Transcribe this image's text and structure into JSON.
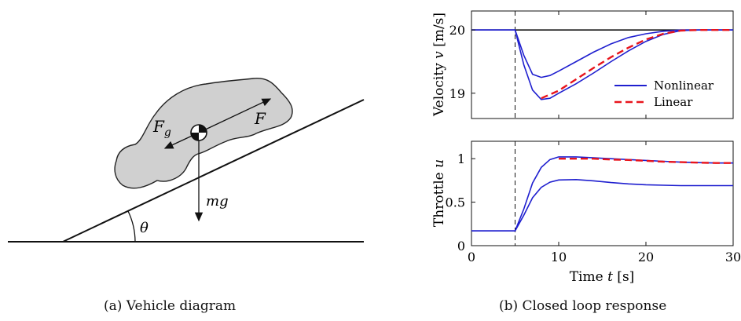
{
  "captions": {
    "left": "(a) Vehicle diagram",
    "right": "(b) Closed loop response"
  },
  "diagram": {
    "label_force_gravity": "F",
    "label_force_gravity_sub": "g",
    "label_force": "F",
    "label_weight": "mg",
    "label_angle": "θ",
    "colors": {
      "car_fill": "#d0d0d0",
      "car_stroke": "#222222",
      "line": "#111111"
    }
  },
  "chart_data": [
    {
      "type": "line",
      "ylabel": "Velocity v [m/s]",
      "ylabel_text": "Velocity ",
      "ylabel_var": "v",
      "ylabel_unit": " [m/s]",
      "xlim": [
        0,
        30
      ],
      "ylim": [
        18.6,
        20.3
      ],
      "yticks": [
        19,
        20
      ],
      "reference_value": 20,
      "reference_time": 5,
      "series": [
        {
          "name": "Nonlinear",
          "color": "#1f1fcf",
          "style": "solid",
          "x": [
            0,
            5,
            6,
            7,
            8,
            9,
            10,
            12,
            14,
            16,
            18,
            20,
            22,
            24,
            26,
            28,
            30
          ],
          "y": [
            20,
            20,
            19.6,
            19.3,
            19.25,
            19.28,
            19.35,
            19.5,
            19.65,
            19.78,
            19.88,
            19.94,
            19.98,
            20,
            20,
            20,
            20
          ]
        },
        {
          "name": "Nonlinear",
          "color": "#1f1fcf",
          "style": "solid",
          "x": [
            0,
            5,
            6,
            7,
            8,
            9,
            10,
            12,
            14,
            16,
            18,
            20,
            22,
            24,
            26,
            28,
            30
          ],
          "y": [
            20,
            20,
            19.45,
            19.05,
            18.9,
            18.92,
            19.0,
            19.15,
            19.32,
            19.5,
            19.67,
            19.82,
            19.93,
            19.99,
            20,
            20,
            20
          ]
        },
        {
          "name": "Linear",
          "color": "#e8141c",
          "style": "dashed",
          "x": [
            8,
            10,
            12,
            14,
            16,
            18,
            20,
            22,
            24,
            26,
            28,
            30
          ],
          "y": [
            18.92,
            19.04,
            19.22,
            19.4,
            19.57,
            19.72,
            19.85,
            19.94,
            19.99,
            20,
            20,
            20
          ]
        }
      ],
      "legend": [
        {
          "label": "Nonlinear",
          "color": "#1f1fcf",
          "style": "solid"
        },
        {
          "label": "Linear",
          "color": "#e8141c",
          "style": "dashed"
        }
      ],
      "legend_position": "lower-right"
    },
    {
      "type": "line",
      "ylabel": "Throttle u",
      "ylabel_text": "Throttle ",
      "ylabel_var": "u",
      "xlabel": "Time t [s]",
      "xlabel_text": "Time ",
      "xlabel_var": "t",
      "xlabel_unit": " [s]",
      "xlim": [
        0,
        30
      ],
      "ylim": [
        0,
        1.2
      ],
      "yticks": [
        0,
        0.5,
        1
      ],
      "ytick_labels": [
        "0",
        "0.5",
        "1"
      ],
      "xticks": [
        0,
        10,
        20,
        30
      ],
      "xtick_labels": [
        "0",
        "10",
        "20",
        "30"
      ],
      "reference_time": 5,
      "series": [
        {
          "name": "Nonlinear",
          "color": "#1f1fcf",
          "style": "solid",
          "x": [
            0,
            5,
            6,
            7,
            8,
            9,
            10,
            12,
            14,
            16,
            18,
            20,
            22,
            24,
            26,
            28,
            30
          ],
          "y": [
            0.17,
            0.17,
            0.42,
            0.72,
            0.9,
            0.99,
            1.02,
            1.02,
            1.01,
            1.0,
            0.99,
            0.98,
            0.97,
            0.96,
            0.955,
            0.95,
            0.95
          ]
        },
        {
          "name": "Nonlinear",
          "color": "#1f1fcf",
          "style": "solid",
          "x": [
            0,
            5,
            6,
            7,
            8,
            9,
            10,
            12,
            14,
            16,
            18,
            20,
            22,
            24,
            26,
            28,
            30
          ],
          "y": [
            0.17,
            0.17,
            0.35,
            0.55,
            0.67,
            0.73,
            0.755,
            0.76,
            0.745,
            0.725,
            0.71,
            0.7,
            0.695,
            0.69,
            0.69,
            0.69,
            0.69
          ]
        },
        {
          "name": "Linear",
          "color": "#e8141c",
          "style": "dashed",
          "x": [
            10,
            12,
            14,
            16,
            18,
            20,
            22,
            24,
            26,
            28,
            30
          ],
          "y": [
            1.0,
            1.0,
            1.0,
            0.99,
            0.985,
            0.975,
            0.965,
            0.96,
            0.955,
            0.95,
            0.95
          ]
        }
      ]
    }
  ]
}
